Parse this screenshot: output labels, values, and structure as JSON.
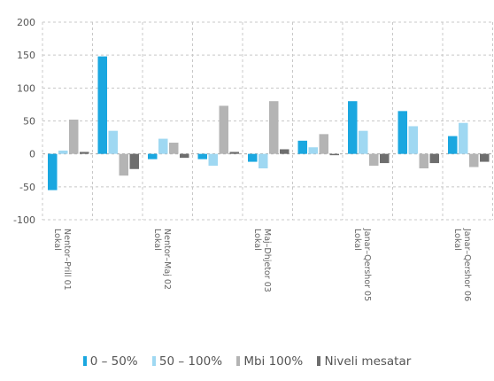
{
  "chart_data": {
    "type": "bar",
    "ylim": [
      -100,
      200
    ],
    "yticks": [
      200,
      150,
      100,
      50,
      0,
      -50,
      -100
    ],
    "grid": true,
    "legend_position": "bottom",
    "categories": [
      "Lokal\nNentor–Prill 01",
      "",
      "Lokal\nNentor–Maj 02",
      "",
      "Lokal\nMaj–Dhjetor 03",
      "",
      "Lokal\nJanar–Qershor 05",
      "",
      "Lokal\nJanar–Qershor 06"
    ],
    "series": [
      {
        "name": "0 – 50%",
        "color": "#1aa7e0",
        "values": [
          -55,
          148,
          -8,
          -8,
          -12,
          20,
          80,
          65,
          27
        ]
      },
      {
        "name": "50 – 100%",
        "color": "#9fd8f2",
        "values": [
          5,
          35,
          23,
          -18,
          -22,
          10,
          35,
          42,
          47
        ]
      },
      {
        "name": "Mbi 100%",
        "color": "#b4b4b4",
        "values": [
          52,
          -33,
          17,
          73,
          80,
          30,
          -18,
          -22,
          -20
        ]
      },
      {
        "name": "Niveli mesatar",
        "color": "#6e6e6e",
        "values": [
          3,
          -23,
          -6,
          3,
          7,
          -2,
          -14,
          -14,
          -12
        ]
      }
    ]
  }
}
